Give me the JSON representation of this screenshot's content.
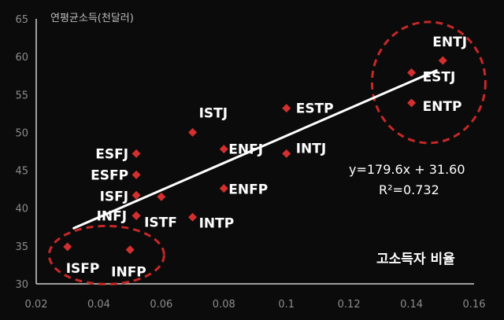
{
  "chart_data": {
    "type": "scatter",
    "title": "",
    "ylabel": "연평균소득(천달러)",
    "xlabel": "고소득자 비율",
    "xlim": [
      0.02,
      0.16
    ],
    "ylim": [
      30,
      65
    ],
    "xticks": [
      "0.02",
      "0.04",
      "0.06",
      "0.08",
      "0.1",
      "0.12",
      "0.14",
      "0.16"
    ],
    "yticks": [
      "30",
      "35",
      "40",
      "45",
      "50",
      "55",
      "60",
      "65"
    ],
    "grid": false,
    "marker_color": "#d32f2f",
    "points": [
      {
        "label": "ENTJ",
        "x": 0.15,
        "y": 59.5
      },
      {
        "label": "ESTJ",
        "x": 0.14,
        "y": 57.9
      },
      {
        "label": "ENTP",
        "x": 0.14,
        "y": 53.9
      },
      {
        "label": "ESTP",
        "x": 0.1,
        "y": 53.2
      },
      {
        "label": "ISTJ",
        "x": 0.07,
        "y": 50.0
      },
      {
        "label": "ENFJ",
        "x": 0.08,
        "y": 47.8
      },
      {
        "label": "INTJ",
        "x": 0.1,
        "y": 47.2
      },
      {
        "label": "ESFJ",
        "x": 0.052,
        "y": 47.2
      },
      {
        "label": "ESFP",
        "x": 0.052,
        "y": 44.4
      },
      {
        "label": "ENFP",
        "x": 0.08,
        "y": 42.6
      },
      {
        "label": "ISFJ",
        "x": 0.052,
        "y": 41.7
      },
      {
        "label": "",
        "x": 0.06,
        "y": 41.5
      },
      {
        "label": "INFJ",
        "x": 0.052,
        "y": 39.0
      },
      {
        "label": "ISTF",
        "x": 0.052,
        "y": 39.0
      },
      {
        "label": "INTP",
        "x": 0.07,
        "y": 38.8
      },
      {
        "label": "ISFP",
        "x": 0.03,
        "y": 34.9
      },
      {
        "label": "INFP",
        "x": 0.05,
        "y": 34.5
      }
    ],
    "trendline": {
      "slope": 179.6,
      "intercept": 31.6,
      "x_range": [
        0.032,
        0.148
      ],
      "color": "#ffffff"
    },
    "equation": "y=179.6x + 31.60",
    "r_squared": "R²=0.732",
    "highlight_color": "#c62828"
  }
}
